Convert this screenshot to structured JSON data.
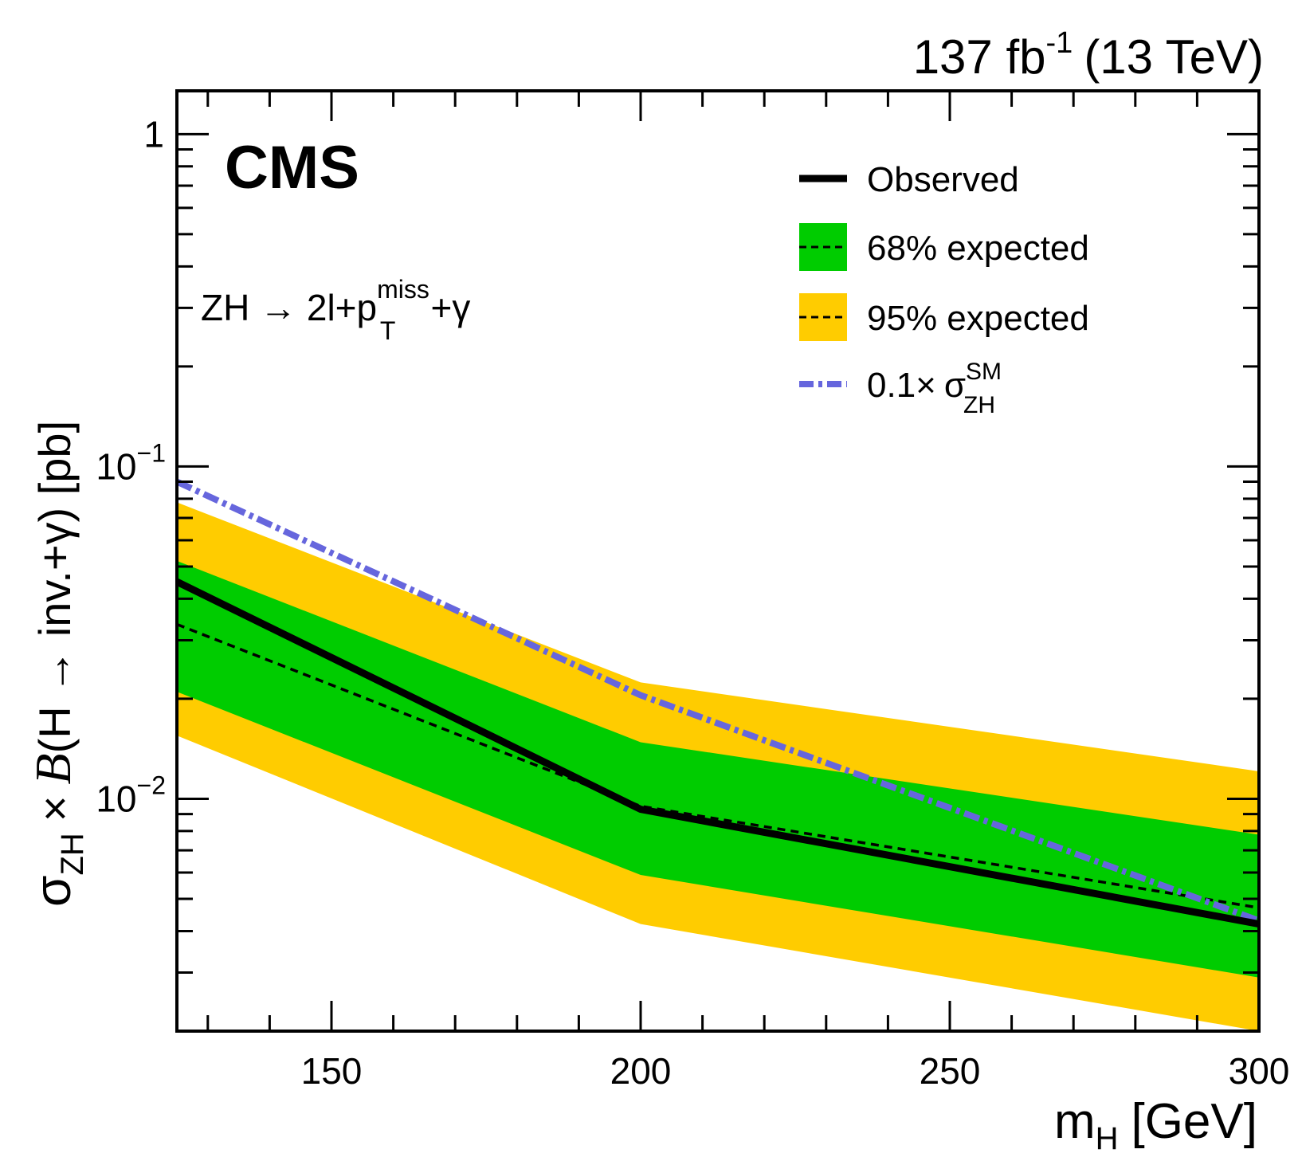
{
  "header": {
    "lumi_value": "137 fb",
    "lumi_exp": "-1",
    "energy": "(13 TeV)"
  },
  "chart_data": {
    "type": "line",
    "experiment_label": "CMS",
    "process_label": {
      "part1": "ZH → 2l+p",
      "sub": "T",
      "sup": "miss",
      "part2": "+γ"
    },
    "xlabel": {
      "main": "m",
      "sub": "H",
      "unit": "[GeV]"
    },
    "ylabel": {
      "sigma": "σ",
      "sub": "ZH",
      "times": "×",
      "B": "B",
      "rest": "(H → inv.+γ) [pb]"
    },
    "xlim": [
      125,
      300
    ],
    "ylim": [
      0.002,
      1.35
    ],
    "y_scale": "log",
    "x_ticks": [
      {
        "value": 150,
        "label": "150"
      },
      {
        "value": 200,
        "label": "200"
      },
      {
        "value": 250,
        "label": "250"
      },
      {
        "value": 300,
        "label": "300"
      }
    ],
    "y_ticks": [
      {
        "value": 1,
        "base": "1",
        "exp": ""
      },
      {
        "value": 0.1,
        "base": "10",
        "exp": "−1"
      },
      {
        "value": 0.01,
        "base": "10",
        "exp": "−2"
      }
    ],
    "legend_position": "top-right",
    "x": [
      125,
      200,
      300
    ],
    "series": [
      {
        "name": "Observed",
        "key": "observed",
        "values": [
          0.045,
          0.0093,
          0.0042
        ],
        "color": "#000000"
      },
      {
        "name": "68% expected",
        "key": "band68",
        "upper": [
          0.052,
          0.0148,
          0.0078
        ],
        "lower": [
          0.021,
          0.0059,
          0.0029
        ],
        "color": "#00cc00"
      },
      {
        "name": "95% expected",
        "key": "band95",
        "upper": [
          0.078,
          0.0224,
          0.0121
        ],
        "lower": [
          0.0155,
          0.0042,
          0.002
        ],
        "color": "#ffcc00"
      },
      {
        "name": "Expected",
        "key": "expected",
        "values": [
          0.0335,
          0.0095,
          0.0047
        ],
        "color": "#000000"
      },
      {
        "name": "0.1×",
        "key": "sm",
        "values": [
          0.09,
          0.0205,
          0.0043
        ],
        "color": "#6666dd",
        "legend_sigma": "σ",
        "legend_sub": "ZH",
        "legend_sup": "SM"
      }
    ]
  }
}
